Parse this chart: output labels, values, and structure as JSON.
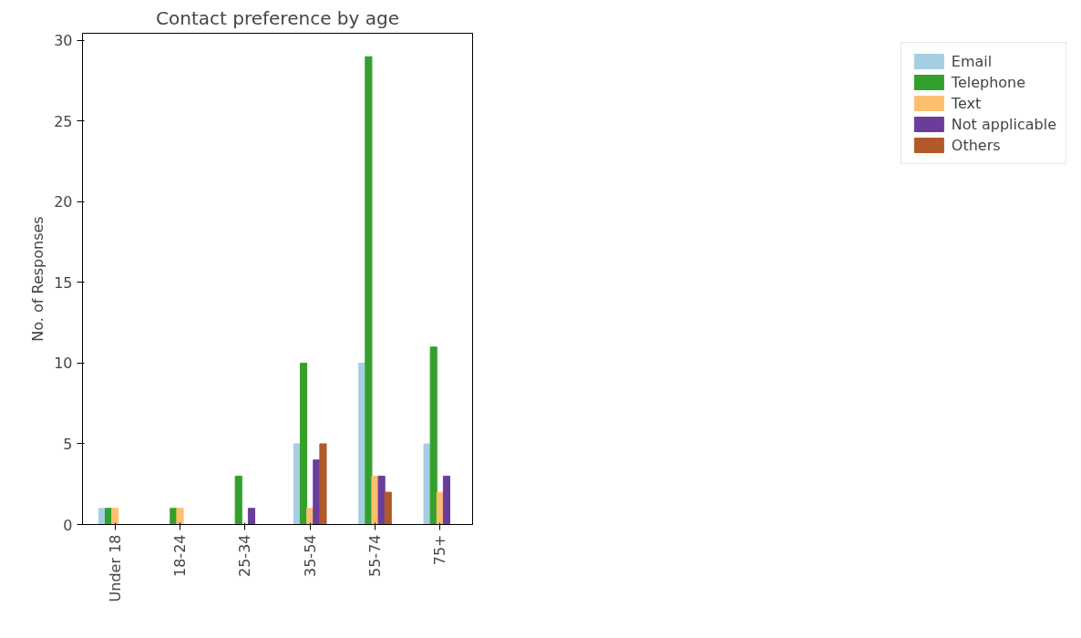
{
  "chart_data": {
    "type": "bar",
    "title": "Contact preference by age",
    "ylabel": "No. of Responses",
    "categories": [
      "Under 18",
      "18-24",
      "25-34",
      "35-54",
      "55-74",
      "75+"
    ],
    "series": [
      {
        "name": "Email",
        "color": "#a6cee3",
        "values": [
          1,
          0,
          0,
          5,
          10,
          5
        ]
      },
      {
        "name": "Telephone",
        "color": "#33a02c",
        "values": [
          1,
          1,
          3,
          10,
          29,
          11
        ]
      },
      {
        "name": "Text",
        "color": "#fdbf6f",
        "values": [
          1,
          1,
          0,
          1,
          3,
          2
        ]
      },
      {
        "name": "Not applicable",
        "color": "#6a3d9a",
        "values": [
          0,
          0,
          1,
          4,
          3,
          3
        ]
      },
      {
        "name": "Others",
        "color": "#b15928",
        "values": [
          0,
          0,
          0,
          5,
          2,
          0
        ]
      }
    ],
    "ylim": [
      0,
      30.45
    ],
    "yticks": [
      0,
      5,
      10,
      15,
      20,
      25,
      30
    ],
    "grid": false,
    "legend": "right"
  }
}
